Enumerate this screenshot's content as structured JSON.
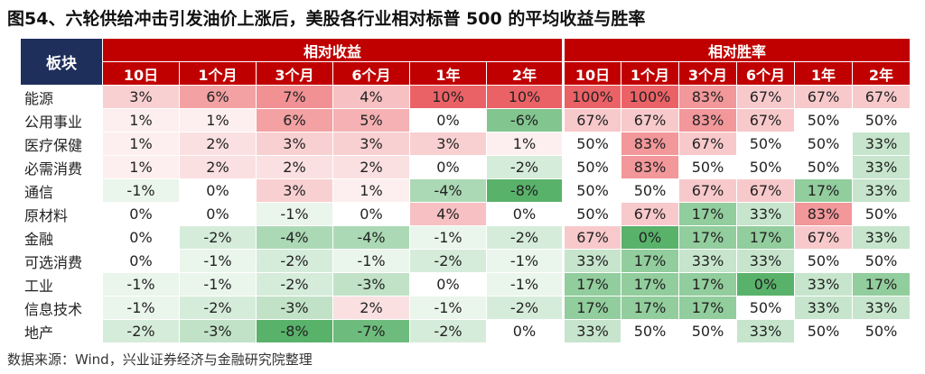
{
  "title": "图54、六轮供给冲击引发油价上涨后，美股各行业相对标普 500 的平均收益与胜率",
  "table": {
    "corner": "板块",
    "group_headers": [
      "相对收益",
      "相对胜率"
    ],
    "return_periods": [
      "10日",
      "1个月",
      "3个月",
      "6个月",
      "1年",
      "2年"
    ],
    "winrate_periods": [
      "10日",
      "1个月",
      "3个月",
      "6个月",
      "1年",
      "2年"
    ],
    "rows": [
      {
        "label": "能源",
        "returns": [
          "3%",
          "6%",
          "7%",
          "4%",
          "10%",
          "10%"
        ],
        "winrates": [
          "100%",
          "100%",
          "83%",
          "67%",
          "67%",
          "67%"
        ]
      },
      {
        "label": "公用事业",
        "returns": [
          "1%",
          "1%",
          "6%",
          "5%",
          "0%",
          "-6%"
        ],
        "winrates": [
          "67%",
          "67%",
          "83%",
          "67%",
          "50%",
          "50%"
        ]
      },
      {
        "label": "医疗保健",
        "returns": [
          "1%",
          "2%",
          "3%",
          "3%",
          "3%",
          "1%"
        ],
        "winrates": [
          "50%",
          "83%",
          "67%",
          "50%",
          "50%",
          "33%"
        ]
      },
      {
        "label": "必需消费",
        "returns": [
          "1%",
          "2%",
          "2%",
          "2%",
          "0%",
          "-2%"
        ],
        "winrates": [
          "50%",
          "83%",
          "50%",
          "50%",
          "50%",
          "33%"
        ]
      },
      {
        "label": "通信",
        "returns": [
          "-1%",
          "0%",
          "3%",
          "1%",
          "-4%",
          "-8%"
        ],
        "winrates": [
          "50%",
          "50%",
          "67%",
          "67%",
          "17%",
          "33%"
        ]
      },
      {
        "label": "原材料",
        "returns": [
          "0%",
          "0%",
          "-1%",
          "0%",
          "4%",
          "0%"
        ],
        "winrates": [
          "50%",
          "67%",
          "17%",
          "33%",
          "83%",
          "50%"
        ]
      },
      {
        "label": "金融",
        "returns": [
          "0%",
          "-2%",
          "-4%",
          "-4%",
          "-1%",
          "-2%"
        ],
        "winrates": [
          "67%",
          "0%",
          "17%",
          "17%",
          "67%",
          "33%"
        ]
      },
      {
        "label": "可选消费",
        "returns": [
          "0%",
          "-1%",
          "-2%",
          "-1%",
          "-2%",
          "-1%"
        ],
        "winrates": [
          "33%",
          "17%",
          "33%",
          "33%",
          "50%",
          "50%"
        ]
      },
      {
        "label": "工业",
        "returns": [
          "-1%",
          "-1%",
          "-2%",
          "-3%",
          "0%",
          "-1%"
        ],
        "winrates": [
          "17%",
          "17%",
          "17%",
          "0%",
          "33%",
          "17%"
        ]
      },
      {
        "label": "信息技术",
        "returns": [
          "-1%",
          "-2%",
          "-3%",
          "2%",
          "-1%",
          "-2%"
        ],
        "winrates": [
          "17%",
          "17%",
          "17%",
          "50%",
          "33%",
          "33%"
        ]
      },
      {
        "label": "地产",
        "returns": [
          "-2%",
          "-3%",
          "-8%",
          "-7%",
          "-2%",
          "0%"
        ],
        "winrates": [
          "33%",
          "50%",
          "50%",
          "33%",
          "50%",
          "50%"
        ]
      }
    ]
  },
  "source": "数据来源：Wind，兴业证券经济与金融研究院整理"
}
